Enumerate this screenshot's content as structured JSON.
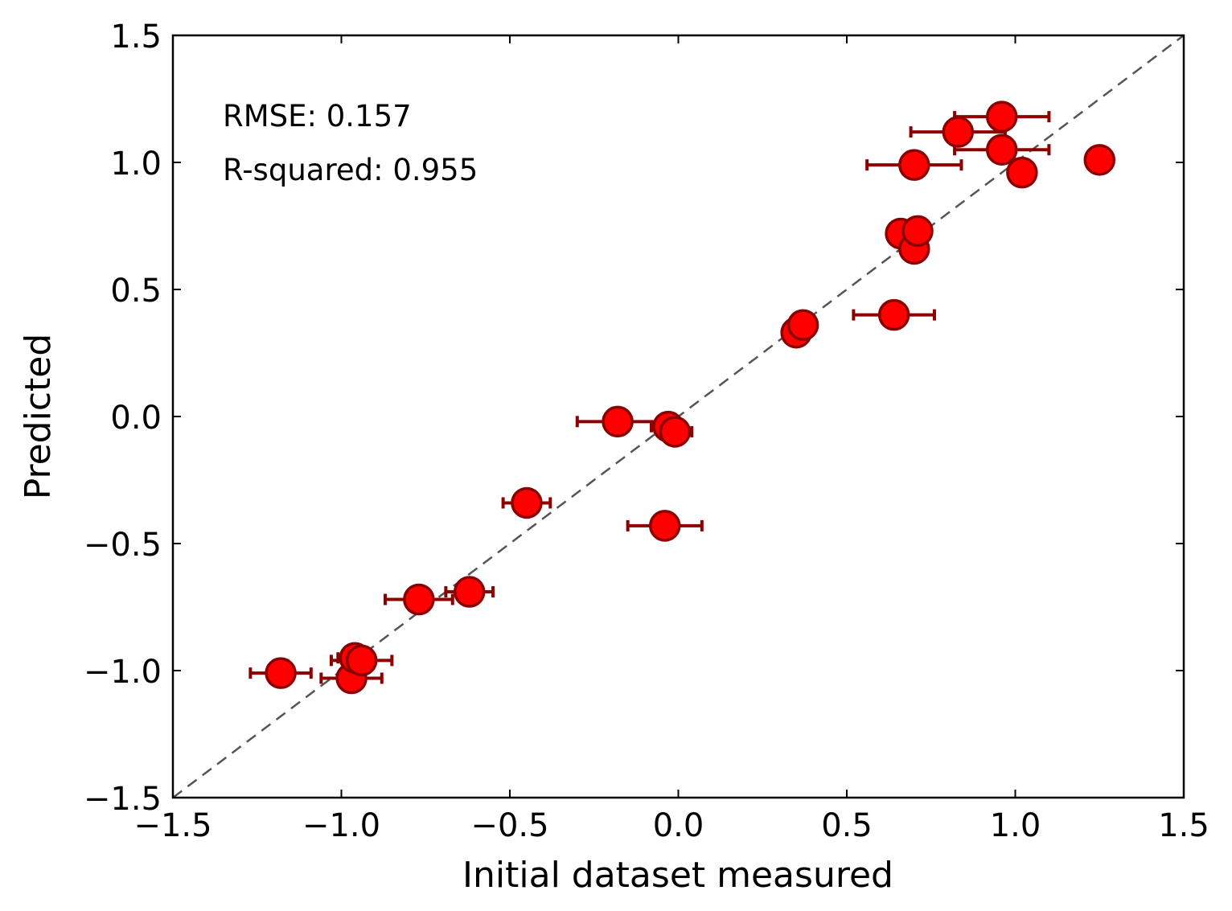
{
  "chart_data": {
    "type": "scatter",
    "title": "",
    "xlabel": "Initial dataset measured",
    "ylabel": "Predicted",
    "xlim": [
      -1.5,
      1.5
    ],
    "ylim": [
      -1.5,
      1.5
    ],
    "xticks": [
      -1.5,
      -1.0,
      -0.5,
      0.0,
      0.5,
      1.0,
      1.5
    ],
    "yticks": [
      -1.5,
      -1.0,
      -0.5,
      0.0,
      0.5,
      1.0,
      1.5
    ],
    "xtick_labels": [
      "−1.5",
      "−1.0",
      "−0.5",
      "0.0",
      "0.5",
      "1.0",
      "1.5"
    ],
    "ytick_labels": [
      "−1.5",
      "−1.0",
      "−0.5",
      "0.0",
      "0.5",
      "1.0",
      "1.5"
    ],
    "grid": false,
    "reference_line": {
      "style": "dashed",
      "color": "#555555",
      "from": [
        -1.5,
        -1.5
      ],
      "to": [
        1.5,
        1.5
      ]
    },
    "annotations": [
      "RMSE: 0.157",
      "R-squared: 0.955"
    ],
    "marker_color": "#ff0000",
    "marker_edge_color": "#8b0000",
    "errorbar_color": "#8b0000",
    "points": [
      {
        "x": -1.18,
        "y": -1.01,
        "xerr": 0.09
      },
      {
        "x": -0.97,
        "y": -1.03,
        "xerr": 0.09
      },
      {
        "x": -0.96,
        "y": -0.95,
        "xerr": 0.05
      },
      {
        "x": -0.94,
        "y": -0.96,
        "xerr": 0.09
      },
      {
        "x": -0.77,
        "y": -0.72,
        "xerr": 0.1
      },
      {
        "x": -0.62,
        "y": -0.69,
        "xerr": 0.07
      },
      {
        "x": -0.45,
        "y": -0.34,
        "xerr": 0.07
      },
      {
        "x": -0.18,
        "y": -0.02,
        "xerr": 0.12
      },
      {
        "x": -0.04,
        "y": -0.43,
        "xerr": 0.11
      },
      {
        "x": -0.03,
        "y": -0.04,
        "xerr": 0.05
      },
      {
        "x": -0.01,
        "y": -0.06,
        "xerr": 0.05
      },
      {
        "x": 0.35,
        "y": 0.33,
        "xerr": 0.0
      },
      {
        "x": 0.37,
        "y": 0.36,
        "xerr": 0.0
      },
      {
        "x": 0.64,
        "y": 0.4,
        "xerr": 0.12
      },
      {
        "x": 0.66,
        "y": 0.72,
        "xerr": 0.0
      },
      {
        "x": 0.7,
        "y": 0.66,
        "xerr": 0.0
      },
      {
        "x": 0.71,
        "y": 0.73,
        "xerr": 0.0
      },
      {
        "x": 0.7,
        "y": 0.99,
        "xerr": 0.14
      },
      {
        "x": 0.83,
        "y": 1.12,
        "xerr": 0.14
      },
      {
        "x": 0.96,
        "y": 1.18,
        "xerr": 0.14
      },
      {
        "x": 0.96,
        "y": 1.05,
        "xerr": 0.14
      },
      {
        "x": 1.02,
        "y": 0.96,
        "xerr": 0.0
      },
      {
        "x": 1.25,
        "y": 1.01,
        "xerr": 0.0
      }
    ]
  }
}
